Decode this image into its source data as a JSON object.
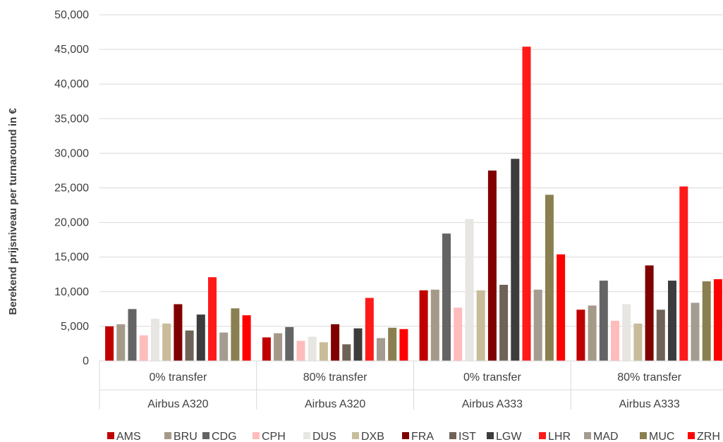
{
  "chart_data": {
    "type": "bar",
    "title": "",
    "ylabel": "Berekend prijsniveau per turnaround in €",
    "xlabel": "",
    "ylim": [
      0,
      50000
    ],
    "yticks": [
      "0",
      "5,000",
      "10,000",
      "15,000",
      "20,000",
      "25,000",
      "30,000",
      "35,000",
      "40,000",
      "45,000",
      "50,000"
    ],
    "ytick_values": [
      0,
      5000,
      10000,
      15000,
      20000,
      25000,
      30000,
      35000,
      40000,
      45000,
      50000
    ],
    "grid": true,
    "legend_position": "bottom",
    "categories": [
      {
        "level1": "0% transfer",
        "level2": "Airbus A320"
      },
      {
        "level1": "80% transfer",
        "level2": "Airbus A320"
      },
      {
        "level1": "0% transfer",
        "level2": "Airbus A333"
      },
      {
        "level1": "80% transfer",
        "level2": "Airbus A333"
      }
    ],
    "series": [
      {
        "name": "AMS",
        "color": "#c00000",
        "values": [
          5000,
          3400,
          10200,
          7400
        ]
      },
      {
        "name": "BRU",
        "color": "#a59a8a",
        "values": [
          5300,
          4000,
          10300,
          8000
        ]
      },
      {
        "name": "CDG",
        "color": "#646464",
        "values": [
          7500,
          4900,
          18400,
          11600
        ]
      },
      {
        "name": "CPH",
        "color": "#ffbcbc",
        "values": [
          3700,
          2900,
          7700,
          5800
        ]
      },
      {
        "name": "DUS",
        "color": "#e8e6e2",
        "values": [
          6100,
          3500,
          20500,
          8200
        ]
      },
      {
        "name": "DXB",
        "color": "#c8bc9a",
        "values": [
          5400,
          2700,
          10200,
          5400
        ]
      },
      {
        "name": "FRA",
        "color": "#800000",
        "values": [
          8200,
          5300,
          27500,
          13800
        ]
      },
      {
        "name": "IST",
        "color": "#6f6357",
        "values": [
          4400,
          2400,
          11000,
          7400
        ]
      },
      {
        "name": "LGW",
        "color": "#3c3c3c",
        "values": [
          6700,
          4700,
          29200,
          11600
        ]
      },
      {
        "name": "LHR",
        "color": "#ff1a1a",
        "values": [
          12100,
          9100,
          45400,
          25200
        ]
      },
      {
        "name": "MAD",
        "color": "#a49c90",
        "values": [
          4100,
          3300,
          10300,
          8400
        ]
      },
      {
        "name": "MUC",
        "color": "#8a7f50",
        "values": [
          7600,
          4800,
          24000,
          11500
        ]
      },
      {
        "name": "ZRH",
        "color": "#ff0000",
        "values": [
          6600,
          4600,
          15400,
          11800
        ]
      }
    ]
  }
}
